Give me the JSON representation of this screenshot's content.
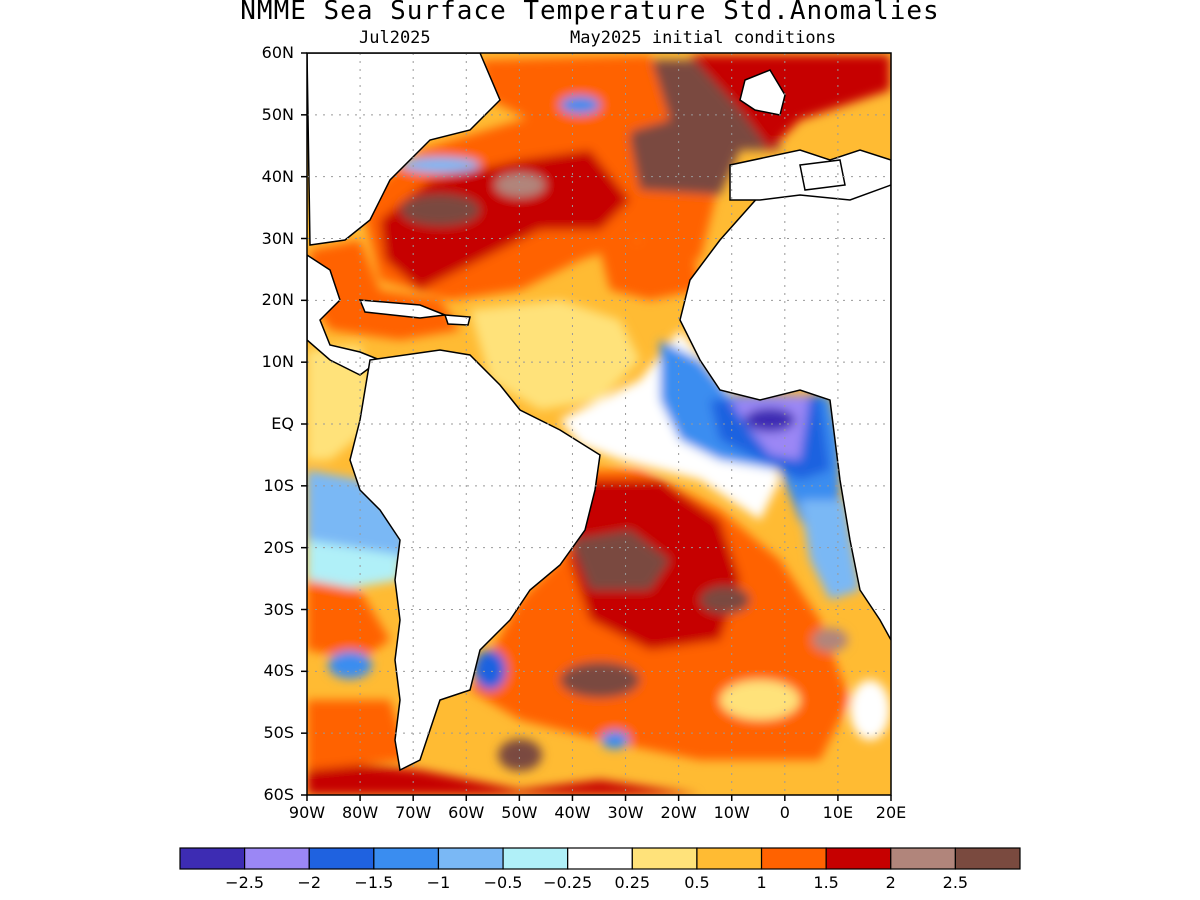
{
  "title": "NMME Sea Surface Temperature Std.Anomalies",
  "subtitle_left": "Jul2025",
  "subtitle_right": "May2025 initial conditions",
  "map": {
    "projection": "lat-lon",
    "lon_range": [
      -90,
      20
    ],
    "lat_range": [
      -60,
      60
    ],
    "grid": true,
    "grid_style": "dotted",
    "region": "Atlantic Ocean",
    "lat_ticks": [
      {
        "lat": 60,
        "label": "60N"
      },
      {
        "lat": 50,
        "label": "50N"
      },
      {
        "lat": 40,
        "label": "40N"
      },
      {
        "lat": 30,
        "label": "30N"
      },
      {
        "lat": 20,
        "label": "20N"
      },
      {
        "lat": 10,
        "label": "10N"
      },
      {
        "lat": 0,
        "label": "EQ"
      },
      {
        "lat": -10,
        "label": "10S"
      },
      {
        "lat": -20,
        "label": "20S"
      },
      {
        "lat": -30,
        "label": "30S"
      },
      {
        "lat": -40,
        "label": "40S"
      },
      {
        "lat": -50,
        "label": "50S"
      },
      {
        "lat": -60,
        "label": "60S"
      }
    ],
    "lon_ticks": [
      {
        "lon": -90,
        "label": "90W"
      },
      {
        "lon": -80,
        "label": "80W"
      },
      {
        "lon": -70,
        "label": "70W"
      },
      {
        "lon": -60,
        "label": "60W"
      },
      {
        "lon": -50,
        "label": "50W"
      },
      {
        "lon": -40,
        "label": "40W"
      },
      {
        "lon": -30,
        "label": "30W"
      },
      {
        "lon": -20,
        "label": "20W"
      },
      {
        "lon": -10,
        "label": "10W"
      },
      {
        "lon": 0,
        "label": "0"
      },
      {
        "lon": 10,
        "label": "10E"
      },
      {
        "lon": 20,
        "label": "20E"
      }
    ],
    "anomaly_regions": [
      {
        "name": "northwest-atlantic-warm",
        "lon": [
          -75,
          -40
        ],
        "lat": [
          28,
          48
        ],
        "level": 2.5
      },
      {
        "name": "northeast-atlantic-warm",
        "lon": [
          -28,
          -8
        ],
        "lat": [
          40,
          60
        ],
        "level": 2.5
      },
      {
        "name": "subtropical-north-warm",
        "lon": [
          -60,
          -15
        ],
        "lat": [
          12,
          30
        ],
        "level": 1.0
      },
      {
        "name": "gulf-of-guinea-cool",
        "lon": [
          -15,
          10
        ],
        "lat": [
          -10,
          5
        ],
        "level": -2.0
      },
      {
        "name": "benguela-cool",
        "lon": [
          2,
          12
        ],
        "lat": [
          -30,
          -10
        ],
        "level": -1.0
      },
      {
        "name": "south-atlantic-warm",
        "lon": [
          -45,
          5
        ],
        "lat": [
          -48,
          -10
        ],
        "level": 2.0
      },
      {
        "name": "southeast-pacific-cool",
        "lon": [
          -90,
          -75
        ],
        "lat": [
          -25,
          -5
        ],
        "level": -1.0
      }
    ]
  },
  "colorbar": {
    "colors": [
      "#3d2cb3",
      "#9b87f5",
      "#1f62e0",
      "#3a8df0",
      "#7ab8f5",
      "#b0f0f8",
      "#ffffff",
      "#ffe27a",
      "#ffbb33",
      "#ff6200",
      "#c60000",
      "#b1857b",
      "#7a4a3f"
    ],
    "labels": [
      "−2.5",
      "−2",
      "−1.5",
      "−1",
      "−0.5",
      "−0.25",
      "0.25",
      "0.5",
      "1",
      "1.5",
      "2",
      "2.5"
    ],
    "levels": [
      -2.5,
      -2,
      -1.5,
      -1,
      -0.5,
      -0.25,
      0.25,
      0.5,
      1,
      1.5,
      2,
      2.5
    ]
  }
}
